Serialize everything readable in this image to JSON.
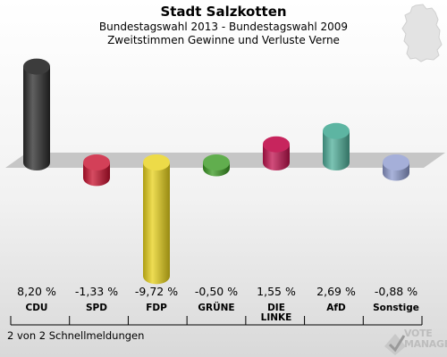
{
  "header": {
    "title": "Stadt Salzkotten",
    "subtitle": "Bundestagswahl 2013 - Bundestagswahl 2009",
    "description": "Zweitstimmen Gewinne und Verluste Verne"
  },
  "footer": {
    "note": "2 von 2 Schnellmeldungen"
  },
  "logo": {
    "text_line1": "VOTE",
    "text_line2": "MANAGER"
  },
  "chart_data": {
    "type": "bar",
    "categories": [
      "CDU",
      "SPD",
      "FDP",
      "GRÜNE",
      "DIE LINKE",
      "AfD",
      "Sonstige"
    ],
    "values": [
      8.2,
      -1.33,
      -9.72,
      -0.5,
      1.55,
      2.69,
      -0.88
    ],
    "value_labels": [
      "8,20 %",
      "-1,33 %",
      "-9,72 %",
      "-0,50 %",
      "1,55 %",
      "2,69 %",
      "-0,88 %"
    ],
    "label_lines": [
      [
        "CDU"
      ],
      [
        "SPD"
      ],
      [
        "FDP"
      ],
      [
        "GRÜNE"
      ],
      [
        "DIE",
        "LINKE"
      ],
      [
        "AfD"
      ],
      [
        "Sonstige"
      ]
    ],
    "colors": [
      "#2b2b2b",
      "#c8102e",
      "#e8d21a",
      "#3a9a22",
      "#c2124f",
      "#4faf9a",
      "#8e9bcf"
    ]
  }
}
